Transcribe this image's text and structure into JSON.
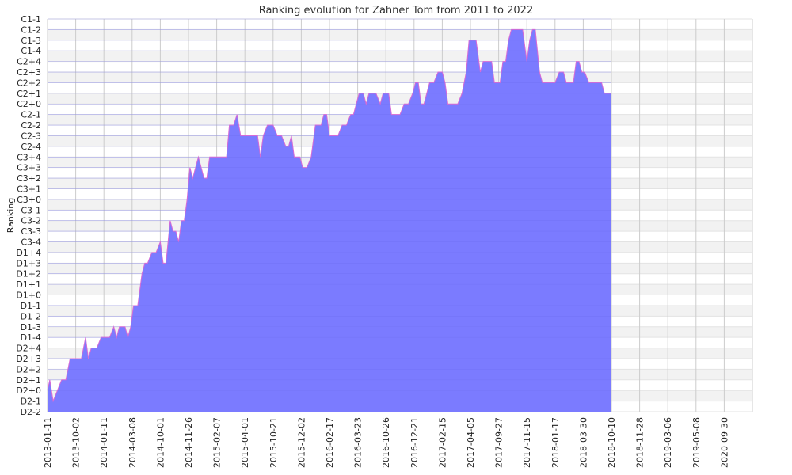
{
  "chart_data": {
    "type": "area",
    "title": "Ranking evolution for Zahner Tom from 2011 to 2022",
    "xlabel": "",
    "ylabel": "Ranking",
    "grid": true,
    "legend": "none",
    "colors": {
      "fill": "#7b7bff",
      "line": "#d66bd6",
      "band": "#f2f2f2",
      "grid": "#cccccc"
    },
    "y_categories": [
      "D2-2",
      "D2-1",
      "D2+0",
      "D2+1",
      "D2+2",
      "D2+3",
      "D2+4",
      "D1-4",
      "D1-3",
      "D1-2",
      "D1-1",
      "D1+0",
      "D1+1",
      "D1+2",
      "D1+3",
      "D1+4",
      "C3-4",
      "C3-3",
      "C3-2",
      "C3-1",
      "C3+0",
      "C3+1",
      "C3+2",
      "C3+3",
      "C3+4",
      "C2-4",
      "C2-3",
      "C2-2",
      "C2-1",
      "C2+0",
      "C2+1",
      "C2+2",
      "C2+3",
      "C2+4",
      "C1-4",
      "C1-3",
      "C1-2",
      "C1-1"
    ],
    "x_ticks": [
      "2013-01-11",
      "2013-10-02",
      "2014-01-11",
      "2014-03-08",
      "2014-10-01",
      "2014-11-26",
      "2015-02-07",
      "2015-04-01",
      "2015-10-21",
      "2015-12-02",
      "2016-02-17",
      "2016-03-23",
      "2016-10-26",
      "2016-12-21",
      "2017-02-15",
      "2017-04-05",
      "2017-09-27",
      "2017-11-15",
      "2018-01-17",
      "2018-03-30",
      "2018-10-10",
      "2018-11-28",
      "2019-03-06",
      "2019-05-08",
      "2020-09-30"
    ],
    "series": [
      {
        "points": [
          {
            "t": 0,
            "r": "D2+0"
          },
          {
            "t": 0.08,
            "r": "D2+1"
          },
          {
            "t": 0.2,
            "r": "D2-1"
          },
          {
            "t": 0.35,
            "r": "D2+0"
          },
          {
            "t": 0.5,
            "r": "D2+1"
          },
          {
            "t": 0.65,
            "r": "D2+1"
          },
          {
            "t": 0.8,
            "r": "D2+3"
          },
          {
            "t": 1.0,
            "r": "D2+3"
          },
          {
            "t": 1.2,
            "r": "D2+3"
          },
          {
            "t": 1.35,
            "r": "D1-4"
          },
          {
            "t": 1.45,
            "r": "D2+3"
          },
          {
            "t": 1.55,
            "r": "D2+4"
          },
          {
            "t": 1.75,
            "r": "D2+4"
          },
          {
            "t": 1.9,
            "r": "D1-4"
          },
          {
            "t": 2.0,
            "r": "D1-4"
          },
          {
            "t": 2.2,
            "r": "D1-4"
          },
          {
            "t": 2.35,
            "r": "D1-3"
          },
          {
            "t": 2.45,
            "r": "D1-4"
          },
          {
            "t": 2.55,
            "r": "D1-3"
          },
          {
            "t": 2.75,
            "r": "D1-3"
          },
          {
            "t": 2.85,
            "r": "D1-4"
          },
          {
            "t": 2.95,
            "r": "D1-3"
          },
          {
            "t": 3.05,
            "r": "D1-1"
          },
          {
            "t": 3.2,
            "r": "D1-1"
          },
          {
            "t": 3.35,
            "r": "D1+2"
          },
          {
            "t": 3.45,
            "r": "D1+3"
          },
          {
            "t": 3.55,
            "r": "D1+3"
          },
          {
            "t": 3.7,
            "r": "D1+4"
          },
          {
            "t": 3.85,
            "r": "D1+4"
          },
          {
            "t": 4.0,
            "r": "C3-4"
          },
          {
            "t": 4.1,
            "r": "D1+3"
          },
          {
            "t": 4.2,
            "r": "D1+3"
          },
          {
            "t": 4.35,
            "r": "C3-2"
          },
          {
            "t": 4.45,
            "r": "C3-3"
          },
          {
            "t": 4.55,
            "r": "C3-3"
          },
          {
            "t": 4.65,
            "r": "C3-4"
          },
          {
            "t": 4.75,
            "r": "C3-2"
          },
          {
            "t": 4.85,
            "r": "C3-2"
          },
          {
            "t": 4.95,
            "r": "C3+0"
          },
          {
            "t": 5.05,
            "r": "C3+3"
          },
          {
            "t": 5.15,
            "r": "C3+2"
          },
          {
            "t": 5.25,
            "r": "C3+3"
          },
          {
            "t": 5.35,
            "r": "C3+4"
          },
          {
            "t": 5.45,
            "r": "C3+3"
          },
          {
            "t": 5.55,
            "r": "C3+2"
          },
          {
            "t": 5.65,
            "r": "C3+2"
          },
          {
            "t": 5.75,
            "r": "C3+4"
          },
          {
            "t": 6.0,
            "r": "C3+4"
          },
          {
            "t": 6.2,
            "r": "C3+4"
          },
          {
            "t": 6.35,
            "r": "C3+4"
          },
          {
            "t": 6.45,
            "r": "C2-2"
          },
          {
            "t": 6.6,
            "r": "C2-2"
          },
          {
            "t": 6.72,
            "r": "C2-1"
          },
          {
            "t": 6.85,
            "r": "C2-3"
          },
          {
            "t": 7.0,
            "r": "C2-3"
          },
          {
            "t": 7.3,
            "r": "C2-3"
          },
          {
            "t": 7.45,
            "r": "C2-3"
          },
          {
            "t": 7.55,
            "r": "C3+4"
          },
          {
            "t": 7.65,
            "r": "C2-3"
          },
          {
            "t": 7.8,
            "r": "C2-2"
          },
          {
            "t": 8.0,
            "r": "C2-2"
          },
          {
            "t": 8.15,
            "r": "C2-3"
          },
          {
            "t": 8.3,
            "r": "C2-3"
          },
          {
            "t": 8.45,
            "r": "C2-4"
          },
          {
            "t": 8.55,
            "r": "C2-4"
          },
          {
            "t": 8.65,
            "r": "C2-3"
          },
          {
            "t": 8.75,
            "r": "C3+4"
          },
          {
            "t": 8.95,
            "r": "C3+4"
          },
          {
            "t": 9.05,
            "r": "C3+3"
          },
          {
            "t": 9.2,
            "r": "C3+3"
          },
          {
            "t": 9.35,
            "r": "C3+4"
          },
          {
            "t": 9.5,
            "r": "C2-2"
          },
          {
            "t": 9.7,
            "r": "C2-2"
          },
          {
            "t": 9.8,
            "r": "C2-1"
          },
          {
            "t": 9.9,
            "r": "C2-1"
          },
          {
            "t": 10.0,
            "r": "C2-3"
          },
          {
            "t": 10.3,
            "r": "C2-3"
          },
          {
            "t": 10.45,
            "r": "C2-2"
          },
          {
            "t": 10.6,
            "r": "C2-2"
          },
          {
            "t": 10.75,
            "r": "C2-1"
          },
          {
            "t": 10.85,
            "r": "C2-1"
          },
          {
            "t": 10.95,
            "r": "C2+0"
          },
          {
            "t": 11.05,
            "r": "C2+1"
          },
          {
            "t": 11.2,
            "r": "C2+1"
          },
          {
            "t": 11.3,
            "r": "C2+0"
          },
          {
            "t": 11.4,
            "r": "C2+1"
          },
          {
            "t": 11.65,
            "r": "C2+1"
          },
          {
            "t": 11.8,
            "r": "C2+0"
          },
          {
            "t": 11.9,
            "r": "C2+1"
          },
          {
            "t": 12.1,
            "r": "C2+1"
          },
          {
            "t": 12.2,
            "r": "C2-1"
          },
          {
            "t": 12.5,
            "r": "C2-1"
          },
          {
            "t": 12.65,
            "r": "C2+0"
          },
          {
            "t": 12.8,
            "r": "C2+0"
          },
          {
            "t": 12.95,
            "r": "C2+1"
          },
          {
            "t": 13.05,
            "r": "C2+2"
          },
          {
            "t": 13.15,
            "r": "C2+2"
          },
          {
            "t": 13.25,
            "r": "C2+0"
          },
          {
            "t": 13.35,
            "r": "C2+0"
          },
          {
            "t": 13.55,
            "r": "C2+2"
          },
          {
            "t": 13.7,
            "r": "C2+2"
          },
          {
            "t": 13.85,
            "r": "C2+3"
          },
          {
            "t": 14.0,
            "r": "C2+3"
          },
          {
            "t": 14.1,
            "r": "C2+2"
          },
          {
            "t": 14.2,
            "r": "C2+0"
          },
          {
            "t": 14.4,
            "r": "C2+0"
          },
          {
            "t": 14.55,
            "r": "C2+0"
          },
          {
            "t": 14.7,
            "r": "C2+1"
          },
          {
            "t": 14.85,
            "r": "C2+3"
          },
          {
            "t": 14.95,
            "r": "C1-3"
          },
          {
            "t": 15.0,
            "r": "C1-3"
          },
          {
            "t": 15.2,
            "r": "C1-3"
          },
          {
            "t": 15.35,
            "r": "C2+3"
          },
          {
            "t": 15.45,
            "r": "C2+4"
          },
          {
            "t": 15.75,
            "r": "C2+4"
          },
          {
            "t": 15.85,
            "r": "C2+2"
          },
          {
            "t": 16.05,
            "r": "C2+2"
          },
          {
            "t": 16.15,
            "r": "C2+4"
          },
          {
            "t": 16.25,
            "r": "C2+4"
          },
          {
            "t": 16.35,
            "r": "C1-3"
          },
          {
            "t": 16.45,
            "r": "C1-2"
          },
          {
            "t": 16.6,
            "r": "C1-2"
          },
          {
            "t": 16.85,
            "r": "C1-2"
          },
          {
            "t": 17.0,
            "r": "C2+4"
          },
          {
            "t": 17.1,
            "r": "C1-3"
          },
          {
            "t": 17.2,
            "r": "C1-2"
          },
          {
            "t": 17.3,
            "r": "C1-2"
          },
          {
            "t": 17.45,
            "r": "C2+3"
          },
          {
            "t": 17.55,
            "r": "C2+2"
          },
          {
            "t": 18.0,
            "r": "C2+2"
          },
          {
            "t": 18.15,
            "r": "C2+3"
          },
          {
            "t": 18.3,
            "r": "C2+3"
          },
          {
            "t": 18.4,
            "r": "C2+2"
          },
          {
            "t": 18.65,
            "r": "C2+2"
          },
          {
            "t": 18.75,
            "r": "C2+4"
          },
          {
            "t": 18.85,
            "r": "C2+4"
          },
          {
            "t": 18.95,
            "r": "C2+3"
          },
          {
            "t": 19.05,
            "r": "C2+3"
          },
          {
            "t": 19.2,
            "r": "C2+2"
          },
          {
            "t": 19.5,
            "r": "C2+2"
          },
          {
            "t": 19.65,
            "r": "C2+2"
          },
          {
            "t": 19.75,
            "r": "C2+1"
          },
          {
            "t": 20.0,
            "r": "C2+1"
          }
        ]
      }
    ]
  }
}
